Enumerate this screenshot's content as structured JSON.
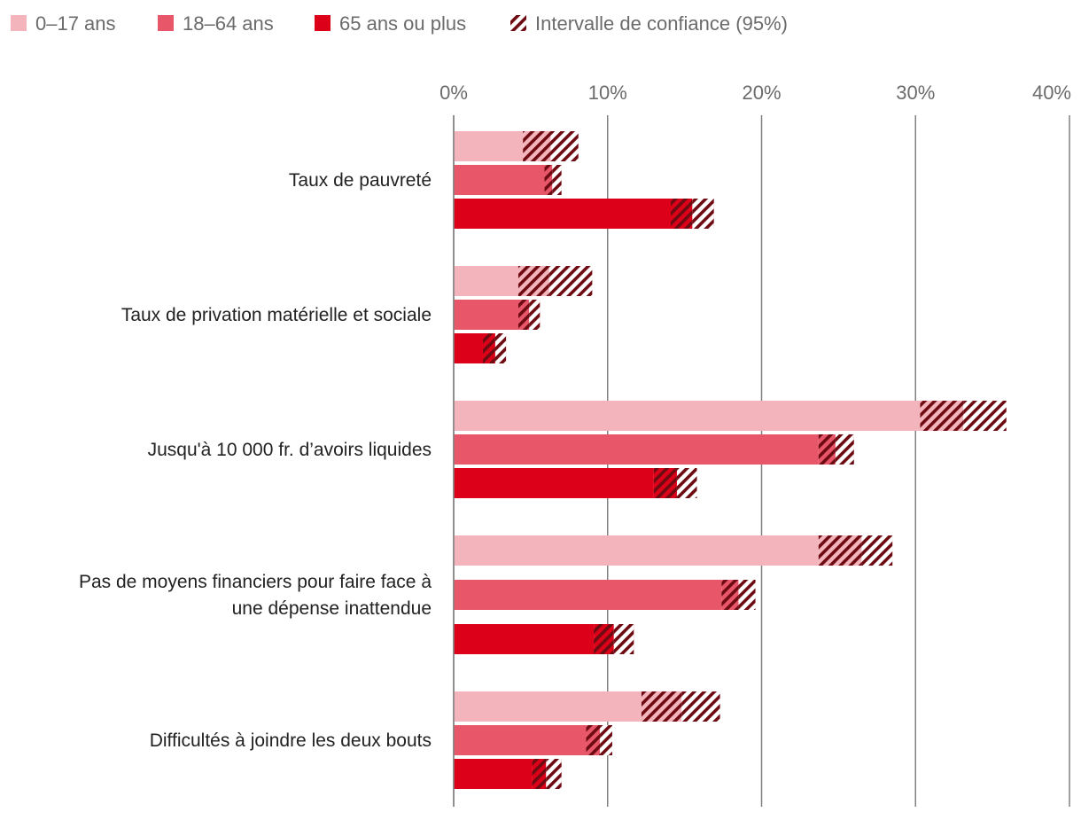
{
  "chart_data": {
    "type": "bar",
    "orientation": "horizontal",
    "title": "",
    "xlabel": "",
    "ylabel": "",
    "xlim": [
      0,
      40
    ],
    "x_ticks": [
      {
        "value": 0,
        "label": "0%"
      },
      {
        "value": 10,
        "label": "10%"
      },
      {
        "value": 20,
        "label": "20%"
      },
      {
        "value": 30,
        "label": "30%"
      },
      {
        "value": 40,
        "label": "40%"
      }
    ],
    "grid": "vertical",
    "legend_position": "top-left",
    "legend": [
      {
        "label": "0–17 ans",
        "type": "series",
        "color": "#f4b4bc"
      },
      {
        "label": "18–64 ans",
        "type": "series",
        "color": "#e8566a"
      },
      {
        "label": "65 ans ou plus",
        "type": "series",
        "color": "#dc0018"
      },
      {
        "label": "Intervalle de confiance (95%)",
        "type": "ci",
        "color": "#6e0b12"
      }
    ],
    "categories": [
      [
        "Taux de pauvreté"
      ],
      [
        "Taux de privation matérielle et sociale"
      ],
      [
        "Jusqu'à 10 000 fr. d’avoirs liquides"
      ],
      [
        "Pas de moyens financiers pour faire face à",
        "une dépense inattendue"
      ],
      [
        "Difficultés à joindre les deux bouts"
      ]
    ],
    "series": [
      {
        "name": "0–17 ans",
        "color": "#f4b4bc",
        "values": [
          6.3,
          6.2,
          33.1,
          26.5,
          14.8
        ],
        "ci_low": [
          4.5,
          4.2,
          30.3,
          23.7,
          12.2
        ],
        "ci_high": [
          8.1,
          9.0,
          35.9,
          28.5,
          17.3
        ]
      },
      {
        "name": "18–64 ans",
        "color": "#e8566a",
        "values": [
          6.4,
          4.9,
          24.8,
          18.5,
          9.5
        ],
        "ci_low": [
          5.9,
          4.2,
          23.7,
          17.4,
          8.6
        ],
        "ci_high": [
          7.0,
          5.6,
          26.0,
          19.6,
          10.3
        ]
      },
      {
        "name": "65 ans ou plus",
        "color": "#dc0018",
        "values": [
          15.5,
          2.7,
          14.5,
          10.4,
          6.0
        ],
        "ci_low": [
          14.1,
          1.9,
          13.0,
          9.1,
          5.1
        ],
        "ci_high": [
          16.9,
          3.4,
          15.8,
          11.7,
          7.0
        ]
      }
    ]
  }
}
